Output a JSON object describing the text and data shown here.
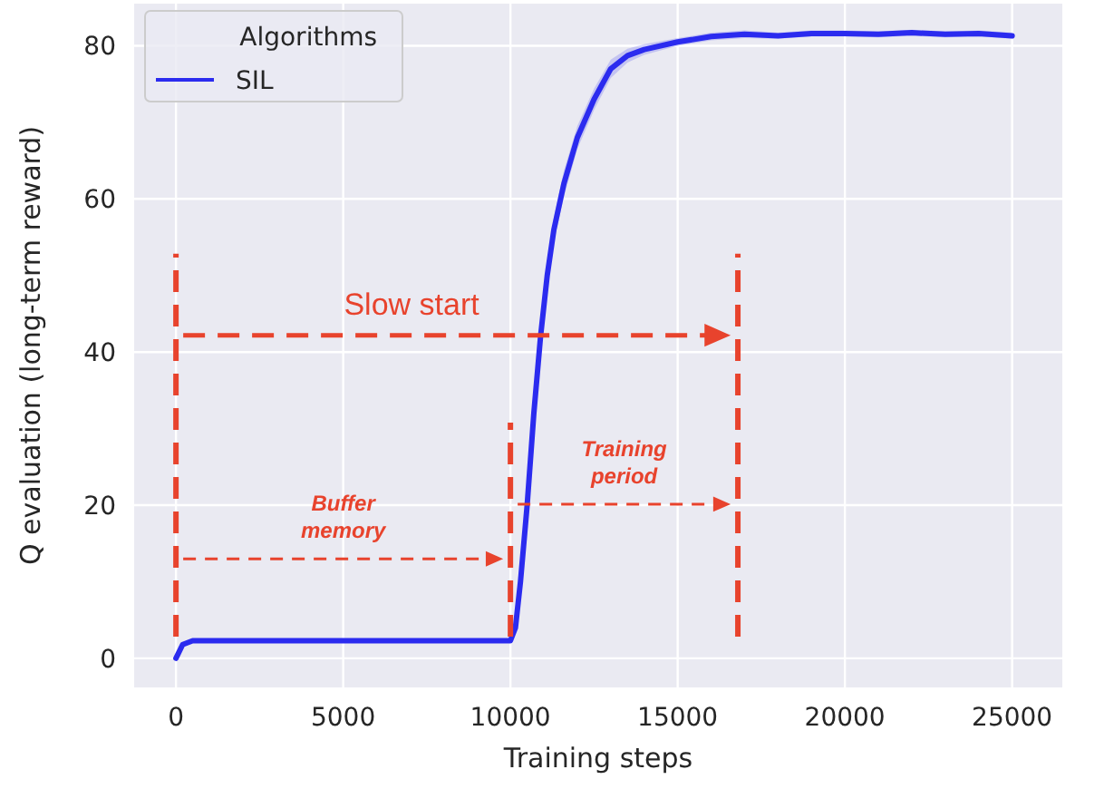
{
  "chart_data": {
    "type": "line",
    "xlabel": "Training steps",
    "ylabel": "Q evaluation (long-term reward)",
    "legend_title": "Algorithms",
    "legend": "top left",
    "grid": true,
    "xlim": [
      -1250,
      26500
    ],
    "ylim": [
      -3.8,
      85.5
    ],
    "xticks": [
      0,
      5000,
      10000,
      15000,
      20000,
      25000
    ],
    "yticks": [
      0,
      20,
      40,
      60,
      80
    ],
    "series": [
      {
        "name": "SIL",
        "color": "#2b2bef",
        "x": [
          0,
          200,
          500,
          2000,
          5000,
          8000,
          10000,
          10150,
          10300,
          10500,
          10700,
          10900,
          11100,
          11300,
          11600,
          12000,
          12500,
          13000,
          13500,
          14000,
          15000,
          16000,
          17000,
          18000,
          19000,
          20000,
          21000,
          22000,
          23000,
          24000,
          25000
        ],
        "values": [
          0,
          1.8,
          2.3,
          2.3,
          2.3,
          2.3,
          2.3,
          4,
          10,
          20,
          32,
          42,
          50,
          56,
          62,
          68,
          73,
          77,
          78.7,
          79.5,
          80.5,
          81.2,
          81.5,
          81.3,
          81.6,
          81.6,
          81.5,
          81.7,
          81.5,
          81.6,
          81.3
        ],
        "lower": [
          0,
          1.6,
          2.1,
          2.1,
          2.1,
          2.1,
          2.1,
          3.7,
          9.5,
          19.3,
          31,
          40.8,
          48.6,
          54.4,
          60.3,
          66.5,
          71.6,
          75.8,
          77.8,
          78.8,
          80,
          80.7,
          81,
          80.9,
          81.2,
          81.2,
          81.1,
          81.3,
          81.1,
          81.2,
          80.9
        ],
        "upper": [
          0,
          2,
          2.5,
          2.5,
          2.5,
          2.5,
          2.5,
          4.3,
          10.5,
          20.7,
          33,
          43.2,
          51.4,
          57.6,
          63.7,
          69.5,
          74.4,
          78.2,
          79.6,
          80.2,
          81,
          81.7,
          82,
          81.7,
          82,
          82,
          81.9,
          82.1,
          81.9,
          82,
          81.7
        ]
      }
    ],
    "ref_lines": [
      {
        "axis": "x",
        "value": 0,
        "color": "#e8432d",
        "line_style": "dashed"
      },
      {
        "axis": "x",
        "value": 10000,
        "color": "#e8432d",
        "line_style": "dashed"
      },
      {
        "axis": "x",
        "value": 16800,
        "color": "#e8432d",
        "line_style": "dashed"
      }
    ],
    "annotations": [
      "Slow start",
      "Buffer memory",
      "Training period"
    ]
  }
}
